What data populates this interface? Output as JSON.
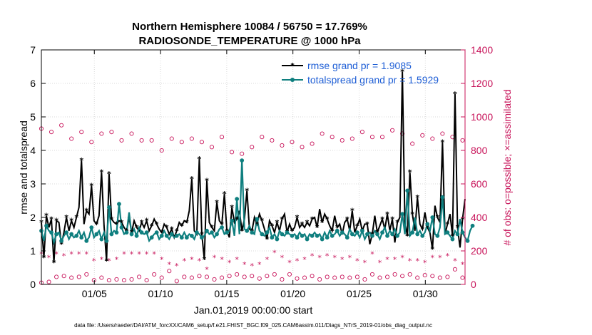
{
  "chart_data": {
    "type": "line",
    "title_line1": "Northern Hemisphere 10084 / 56750 = 17.769%",
    "title_line2": "RADIOSONDE_TEMPERATURE @ 1000 hPa",
    "xlabel": "Jan.01,2019 00:00:00 start",
    "ylabel": "rmse and totalspread",
    "y2label": "# of obs: o=possible; ×=assimilated",
    "footnote": "data file: /Users/raeder/DAI/ATM_forcXX/CAM6_setup/f.e21.FHIST_BGC.f09_025.CAM6assim.011/Diags_NTrS_2019-01/obs_diag_output.nc",
    "xlim": [
      1,
      33
    ],
    "ylim": [
      0,
      7
    ],
    "y2lim": [
      0,
      1400
    ],
    "x_ticks": [
      5,
      10,
      15,
      20,
      25,
      30
    ],
    "x_tick_labels": [
      "01/05",
      "01/10",
      "01/15",
      "01/20",
      "01/25",
      "01/30"
    ],
    "y_ticks": [
      0,
      1,
      2,
      3,
      4,
      5,
      6,
      7
    ],
    "y_tick_labels": [
      "0",
      "1",
      "2",
      "3",
      "4",
      "5",
      "6",
      "7"
    ],
    "y2_ticks": [
      0,
      200,
      400,
      600,
      800,
      1000,
      1200,
      1400
    ],
    "y2_tick_labels": [
      "0",
      "200",
      "400",
      "600",
      "800",
      "1000",
      "1200",
      "1400"
    ],
    "legend": [
      {
        "name": "rmse grand pr = 1.9085",
        "color": "#000000"
      },
      {
        "name": "totalspread grand pr = 1.5929",
        "color": "#0f7f7f"
      }
    ],
    "colors": {
      "rmse": "#000000",
      "spread": "#0f7f7f",
      "obs": "#c8145a"
    },
    "series": [
      {
        "name": "rmse",
        "values": [
          1.85,
          0.8,
          2.05,
          1.7,
          1.95,
          0.65,
          1.9,
          1.85,
          1.2,
          1.55,
          2.0,
          1.6,
          1.9,
          1.7,
          2.0,
          2.3,
          3.7,
          1.8,
          2.2,
          2.1,
          2.95,
          1.9,
          1.8,
          2.05,
          3.35,
          1.75,
          0.7,
          3.3,
          1.95,
          1.85,
          1.8,
          1.9,
          1.85,
          1.7,
          1.6,
          2.0,
          1.55,
          1.9,
          1.7,
          1.6,
          1.85,
          1.7,
          1.9,
          1.6,
          1.75,
          1.95,
          1.8,
          1.65,
          1.55,
          1.8,
          1.7,
          1.5,
          1.65,
          1.4,
          1.6,
          1.85,
          1.75,
          1.9,
          1.85,
          2.2,
          3.15,
          1.6,
          1.5,
          3.75,
          1.5,
          0.75,
          3.1,
          1.85,
          1.7,
          1.6,
          2.45,
          1.9,
          1.8,
          2.7,
          1.6,
          1.4,
          2.3,
          1.85,
          1.95,
          2.2,
          1.6,
          1.95,
          2.8,
          1.65,
          1.6,
          2.0,
          1.8,
          2.1,
          1.9,
          1.65,
          1.35,
          1.9,
          1.75,
          1.55,
          1.85,
          1.6,
          1.95,
          2.1,
          1.55,
          1.8,
          1.6,
          1.7,
          2.0,
          1.7,
          1.8,
          1.7,
          1.85,
          1.75,
          1.95,
          2.0,
          1.7,
          2.25,
          1.85,
          2.1,
          1.95,
          1.75,
          1.6,
          2.05,
          1.7,
          1.8,
          1.5,
          1.85,
          1.95,
          1.6,
          2.2,
          1.55,
          1.75,
          1.95,
          1.6,
          1.8,
          1.8,
          1.2,
          1.5,
          2.05,
          1.55,
          1.75,
          1.95,
          1.65,
          2.1,
          1.6,
          1.95,
          1.25,
          1.85,
          2.0,
          6.35,
          1.85,
          1.45,
          3.35,
          2.1,
          1.6,
          2.6,
          1.8,
          1.65,
          2.15,
          1.7,
          1.55,
          1.05,
          2.35,
          2.0,
          1.85,
          4.25,
          1.5,
          1.8,
          2.1,
          1.45,
          5.68,
          1.7,
          1.1,
          1.95,
          2.55
        ]
      },
      {
        "name": "totalspread",
        "values": [
          1.6,
          1.3,
          1.75,
          1.6,
          1.55,
          1.25,
          1.5,
          1.55,
          1.3,
          1.45,
          1.55,
          1.35,
          1.5,
          1.4,
          1.45,
          1.6,
          1.4,
          1.55,
          1.3,
          1.4,
          1.7,
          1.4,
          1.5,
          1.6,
          1.35,
          1.55,
          1.3,
          2.3,
          1.5,
          1.6,
          1.55,
          2.4,
          1.7,
          1.5,
          1.55,
          2.15,
          1.5,
          1.65,
          1.45,
          1.7,
          1.55,
          1.5,
          1.55,
          1.3,
          1.4,
          1.5,
          1.55,
          1.35,
          1.45,
          1.6,
          1.45,
          1.35,
          1.5,
          1.4,
          1.45,
          1.5,
          1.4,
          1.55,
          1.4,
          1.5,
          1.45,
          1.35,
          1.55,
          1.5,
          1.4,
          1.45,
          1.6,
          1.5,
          1.55,
          1.4,
          1.5,
          1.65,
          1.7,
          1.5,
          1.55,
          1.6,
          1.9,
          1.45,
          2.55,
          1.5,
          3.7,
          1.65,
          1.6,
          1.75,
          1.55,
          1.5,
          1.95,
          1.6,
          1.5,
          1.45,
          1.55,
          1.7,
          1.4,
          1.5,
          1.35,
          1.6,
          1.5,
          1.45,
          1.55,
          1.5,
          1.45,
          1.5,
          1.4,
          1.55,
          1.45,
          1.5,
          1.35,
          1.5,
          1.45,
          1.55,
          1.45,
          1.5,
          1.35,
          1.55,
          1.4,
          1.6,
          1.45,
          1.5,
          1.6,
          1.45,
          1.55,
          1.5,
          1.4,
          1.65,
          1.5,
          1.45,
          1.55,
          1.4,
          1.6,
          1.35,
          1.5,
          1.55,
          1.45,
          1.6,
          1.5,
          1.35,
          1.55,
          1.7,
          1.45,
          1.6,
          1.5,
          1.65,
          1.45,
          1.55,
          2.1,
          1.5,
          2.8,
          1.45,
          1.55,
          2.0,
          1.5,
          1.6,
          1.45,
          1.55,
          1.8,
          1.6,
          2.0,
          1.5,
          1.45,
          1.7,
          2.6,
          1.5,
          1.55,
          1.45,
          1.35,
          1.6,
          1.5,
          1.95,
          1.55,
          1.4,
          1.3,
          1.6,
          1.75
        ]
      },
      {
        "name": "possible",
        "values": [
          930,
          860,
          900,
          870,
          910,
          880,
          920,
          890,
          950,
          900,
          880,
          910,
          870,
          920,
          900,
          880,
          910,
          860,
          900,
          880,
          850,
          900,
          870,
          880,
          900,
          850,
          860,
          880,
          910,
          890,
          850,
          900,
          860,
          880,
          870,
          850,
          900,
          870,
          880,
          840,
          860,
          830,
          850,
          880,
          860,
          880,
          840,
          860,
          800,
          820,
          850,
          830,
          870,
          820,
          880,
          840,
          850,
          800,
          840,
          860,
          870,
          830,
          850,
          810,
          850,
          800,
          870,
          830,
          820,
          790,
          850,
          810,
          880,
          800,
          870,
          830,
          790,
          810,
          850,
          820,
          780,
          860,
          830,
          800,
          820,
          810,
          790,
          850,
          880,
          800,
          830,
          820,
          860,
          810,
          840,
          880,
          830,
          850,
          820,
          900,
          850,
          880,
          840,
          870,
          820,
          910,
          860,
          880,
          840,
          870,
          890,
          830,
          900,
          850,
          870,
          840,
          880,
          900,
          850,
          870,
          860,
          880,
          900,
          890,
          870,
          890,
          900,
          860,
          910,
          870,
          900,
          850,
          880,
          860,
          900,
          870,
          880,
          850,
          900,
          870,
          920,
          880,
          890,
          860,
          900,
          870,
          850,
          880,
          840,
          900,
          860,
          880,
          890,
          850,
          900,
          860,
          870,
          880,
          890,
          860,
          900,
          880,
          870,
          850,
          880,
          840,
          870,
          830,
          860,
          880
        ]
      },
      {
        "name": "assimilated",
        "values": [
          180,
          140,
          180,
          160,
          170,
          150,
          180,
          170,
          160,
          170,
          190,
          150,
          180,
          170,
          160,
          180,
          170,
          150,
          180,
          160,
          170,
          140,
          180,
          170,
          150,
          180,
          170,
          140,
          180,
          170,
          150,
          180,
          160,
          180,
          170,
          150,
          180,
          170,
          140,
          180,
          160,
          170,
          180,
          150,
          170,
          180,
          160,
          170,
          150,
          180,
          170,
          120,
          160,
          170,
          110,
          150,
          170,
          140,
          160,
          120,
          150,
          160,
          100,
          140,
          160,
          120,
          90,
          150,
          130,
          160,
          140,
          100,
          150,
          120,
          170,
          130,
          140,
          110,
          150,
          130,
          160,
          120,
          150,
          140,
          110,
          130,
          160,
          120,
          130,
          140,
          150,
          160,
          170,
          190,
          140,
          180,
          160,
          150,
          170,
          130,
          160,
          180,
          140,
          170,
          130,
          150,
          160,
          140,
          170,
          130,
          150,
          160,
          180,
          140,
          170,
          150,
          130,
          160,
          170,
          140,
          150,
          180,
          130,
          160,
          150,
          170,
          140,
          160,
          150,
          130,
          170,
          140,
          180,
          150,
          160,
          130,
          140,
          170,
          150,
          160,
          130,
          150,
          170,
          140,
          160,
          150,
          180,
          140,
          130,
          150,
          140,
          160,
          150,
          130,
          170,
          140,
          160,
          150,
          120,
          160,
          140,
          130,
          170,
          150,
          160,
          140,
          130,
          170,
          120,
          140
        ]
      },
      {
        "name": "possible_low",
        "values": [
          10,
          40,
          50,
          15,
          40,
          10,
          45,
          20,
          35,
          50,
          60,
          25,
          40,
          15,
          30,
          45,
          20,
          35,
          60,
          40,
          30,
          25,
          45,
          20,
          40,
          30,
          50,
          25,
          60,
          45,
          30,
          40,
          70,
          25,
          40,
          35,
          30,
          60,
          20,
          45,
          30,
          40,
          25,
          50,
          35,
          60,
          30,
          90,
          40,
          30,
          60,
          80,
          30,
          40,
          20,
          35,
          50,
          45,
          30,
          25,
          40,
          60,
          30,
          50,
          40,
          35,
          45,
          50,
          40,
          30,
          55,
          70,
          40,
          60,
          45,
          50,
          30,
          40,
          60,
          35,
          80,
          45,
          40,
          30,
          50,
          45,
          40,
          35,
          30,
          90,
          50,
          40,
          30,
          60,
          45,
          35,
          30,
          40,
          50,
          60,
          40,
          30,
          35,
          45,
          30,
          40,
          60,
          45,
          50,
          40,
          35,
          30,
          60,
          40,
          45,
          35,
          50,
          40,
          30,
          60,
          45,
          50,
          70,
          40,
          35,
          55,
          45,
          40,
          50,
          30,
          45,
          40,
          60,
          45,
          35,
          40,
          55,
          50,
          45,
          35,
          40,
          60,
          45,
          30,
          50,
          45,
          40,
          60,
          35,
          50,
          40,
          45,
          30,
          55,
          40,
          60,
          50,
          45,
          35,
          40,
          50,
          60,
          45,
          40,
          35,
          90,
          50,
          30,
          40,
          10
        ]
      }
    ]
  }
}
